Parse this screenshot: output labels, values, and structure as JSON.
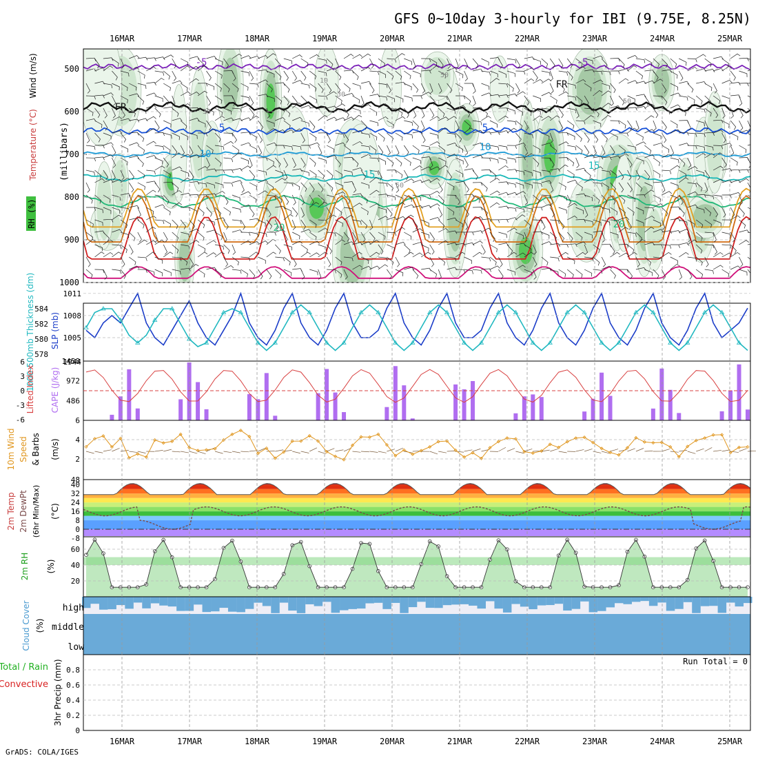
{
  "title": "GFS 0~10day 3-hourly for IBI (9.75E, 8.25N)",
  "credit": "GrADS: COLA/IGES",
  "run_total_text": "Run Total = 0",
  "chart_data": [
    {
      "panel": "upper-air",
      "type": "heatmap",
      "x_ticks": [
        "16MAR",
        "17MAR",
        "18MAR",
        "19MAR",
        "20MAR",
        "21MAR",
        "22MAR",
        "23MAR",
        "24MAR",
        "25MAR"
      ],
      "y_ticks": [
        "500",
        "600",
        "700",
        "800",
        "900",
        "1000"
      ],
      "ylabel": "(millibars)",
      "label_rh": "RH (%)",
      "label_temp": "Temperature (°C)",
      "label_wind": "Wind (m/s)",
      "contour_labels": [
        "-5",
        "-5",
        "FR",
        "FR",
        "5",
        "5",
        "10",
        "10",
        "15",
        "15",
        "20",
        "20",
        "10",
        "30",
        "30",
        "50",
        "50",
        "50"
      ],
      "isotherms": [
        {
          "name": "-5",
          "p": 495,
          "amp": 4,
          "color": "#7a1fb8"
        },
        {
          "name": "FR",
          "p": 590,
          "amp": 16,
          "color": "#111111"
        },
        {
          "name": "5",
          "p": 645,
          "amp": 6,
          "color": "#1550d8"
        },
        {
          "name": "10",
          "p": 700,
          "amp": 8,
          "color": "#1a9ad6"
        },
        {
          "name": "15",
          "p": 755,
          "amp": 12,
          "color": "#18b8b8"
        },
        {
          "name": "20",
          "p": 810,
          "amp": 24,
          "color": "#20b878"
        },
        {
          "name": "25",
          "p": 870,
          "amp": 50,
          "color": "#e2a020"
        },
        {
          "name": "30",
          "p": 905,
          "amp": 60,
          "color": "#d06a10"
        },
        {
          "name": "35",
          "p": 945,
          "amp": 55,
          "color": "#d02020"
        },
        {
          "name": "40",
          "p": 990,
          "amp": 15,
          "color": "#d0107a"
        }
      ]
    },
    {
      "panel": "thickness-slp",
      "type": "line",
      "ylabel_left": "1000-500mb Thickness (dm)",
      "ylabel_right": "SLP (mb)",
      "y_ticks_left": [
        "584",
        "582",
        "580",
        "578"
      ],
      "y_ticks_right": [
        "1011",
        "1008",
        "1005"
      ],
      "y_bottom_label": "1944",
      "series": [
        {
          "name": "SLP",
          "color": "#1a3cc8",
          "values": [
            1006,
            1005,
            1007,
            1008,
            1007,
            1009,
            1011,
            1007,
            1005,
            1004,
            1006,
            1008,
            1010,
            1007,
            1005,
            1004,
            1006,
            1008,
            1011,
            1007,
            1005,
            1004,
            1006,
            1009,
            1011,
            1007,
            1005,
            1004,
            1006,
            1009,
            1011,
            1007,
            1005,
            1005,
            1006,
            1009,
            1011,
            1007,
            1005,
            1004,
            1006,
            1009,
            1011,
            1007,
            1005,
            1005,
            1006,
            1009,
            1011,
            1007,
            1005,
            1004,
            1006,
            1009,
            1011,
            1007,
            1005,
            1004,
            1006,
            1009,
            1011,
            1007,
            1005,
            1004,
            1006,
            1009,
            1011,
            1007,
            1005,
            1004,
            1006,
            1009,
            1011,
            1007,
            1005,
            1006,
            1007,
            1009
          ]
        },
        {
          "name": "Thickness",
          "color": "#20b8c0",
          "values": [
            581.5,
            583.5,
            584,
            584,
            582.5,
            580.5,
            579.5,
            580.5,
            582.5,
            584,
            584,
            582,
            580,
            579,
            579.5,
            581.5,
            583.5,
            584,
            583.5,
            581.5,
            579.5,
            578.5,
            579.5,
            581.5,
            583.5,
            584.5,
            583.5,
            581.5,
            579.5,
            578.5,
            579.5,
            581.5,
            583.5,
            584.5,
            583.5,
            581.5,
            579.5,
            578.5,
            579.5,
            581.5,
            583.5,
            584.5,
            583.5,
            581.5,
            579.5,
            578.5,
            579.5,
            581.5,
            583.5,
            584.5,
            583.5,
            581.5,
            579.5,
            578.5,
            579.5,
            581.5,
            583.5,
            584.5,
            583.5,
            581.5,
            579.5,
            578.5,
            579.5,
            581.5,
            583.5,
            584.5,
            583.5,
            581.5,
            579.5,
            578.5,
            579.5,
            581.5,
            583.5,
            584.5,
            583.5,
            581.5,
            579.5,
            578.5
          ]
        }
      ]
    },
    {
      "panel": "cape-li",
      "type": "bar",
      "ylabel_left": "Lifted Index",
      "ylabel_right": "CAPE (J/kg)",
      "y_ticks_left": [
        "-6",
        "-3",
        "0",
        "3",
        "6"
      ],
      "y_ticks_right": [
        "1458",
        "972",
        "486"
      ],
      "cape": [
        0,
        0,
        0,
        0,
        0,
        0,
        0,
        0,
        0,
        0,
        0,
        0,
        0,
        0,
        0,
        0,
        0,
        0,
        0,
        0,
        0,
        0,
        0,
        0,
        0,
        0,
        0,
        0,
        0,
        0,
        0,
        0,
        0,
        0,
        0,
        0,
        0,
        0,
        0,
        0,
        0,
        0,
        0,
        0,
        0,
        0,
        0,
        0,
        0,
        0,
        0,
        0,
        0,
        0,
        0,
        0,
        0,
        0,
        0,
        0,
        0,
        0,
        0,
        0,
        0,
        0,
        0,
        0,
        0,
        0,
        0,
        0,
        0,
        0,
        0,
        0,
        0,
        0
      ],
      "li": [
        6,
        6,
        6,
        6,
        6,
        6,
        6,
        6,
        6,
        6,
        6,
        6,
        6,
        6,
        6,
        6,
        6,
        6,
        6,
        6,
        6,
        6,
        6,
        6,
        6,
        6,
        6,
        6,
        6,
        6,
        6,
        6,
        6,
        6,
        6,
        6,
        6,
        6,
        6,
        6,
        6,
        6,
        6,
        6,
        6,
        6,
        6,
        6,
        6,
        6,
        6,
        6,
        6,
        6,
        6,
        6,
        6,
        6,
        6,
        6,
        6,
        6,
        6,
        6,
        6,
        6,
        6,
        6,
        6,
        6,
        6,
        6,
        6,
        6,
        6,
        6,
        6,
        6
      ]
    },
    {
      "panel": "wind10m",
      "type": "line",
      "ylabel": "10m Wind Speed & Barbs (m/s)",
      "label_a": "10m Wind",
      "label_b": "Speed",
      "label_c": "& Barbs",
      "label_d": "(m/s)",
      "y_ticks": [
        "6",
        "4",
        "2"
      ],
      "y_bottom_label": "48",
      "series": [
        {
          "name": "Speed",
          "color": "#e0961e",
          "values": []
        }
      ]
    },
    {
      "panel": "temp2m",
      "type": "area",
      "ylabel_a": "2m Temp",
      "ylabel_b": "2m DewPt",
      "ylabel_c": "(6hr Min/Max)",
      "ylabel_d": "(°C)",
      "y_ticks": [
        "40",
        "32",
        "24",
        "16",
        "8",
        "0",
        "-8"
      ]
    },
    {
      "panel": "rh2m",
      "type": "area",
      "ylabel_a": "2m RH",
      "ylabel_b": "(%)",
      "y_ticks": [
        "60",
        "40",
        "20"
      ]
    },
    {
      "panel": "cloud",
      "type": "bar",
      "ylabel_a": "Cloud Cover",
      "ylabel_b": "(%)",
      "levels": [
        "high",
        "middle",
        "low"
      ]
    },
    {
      "panel": "precip",
      "type": "bar",
      "ylabel_a": "Total / Rain",
      "ylabel_b": "Convective",
      "ylabel_c": "3hr Precip (mm)",
      "y_ticks": [
        "0.8",
        "0.6",
        "0.4",
        "0.2",
        "0"
      ],
      "values": []
    }
  ]
}
